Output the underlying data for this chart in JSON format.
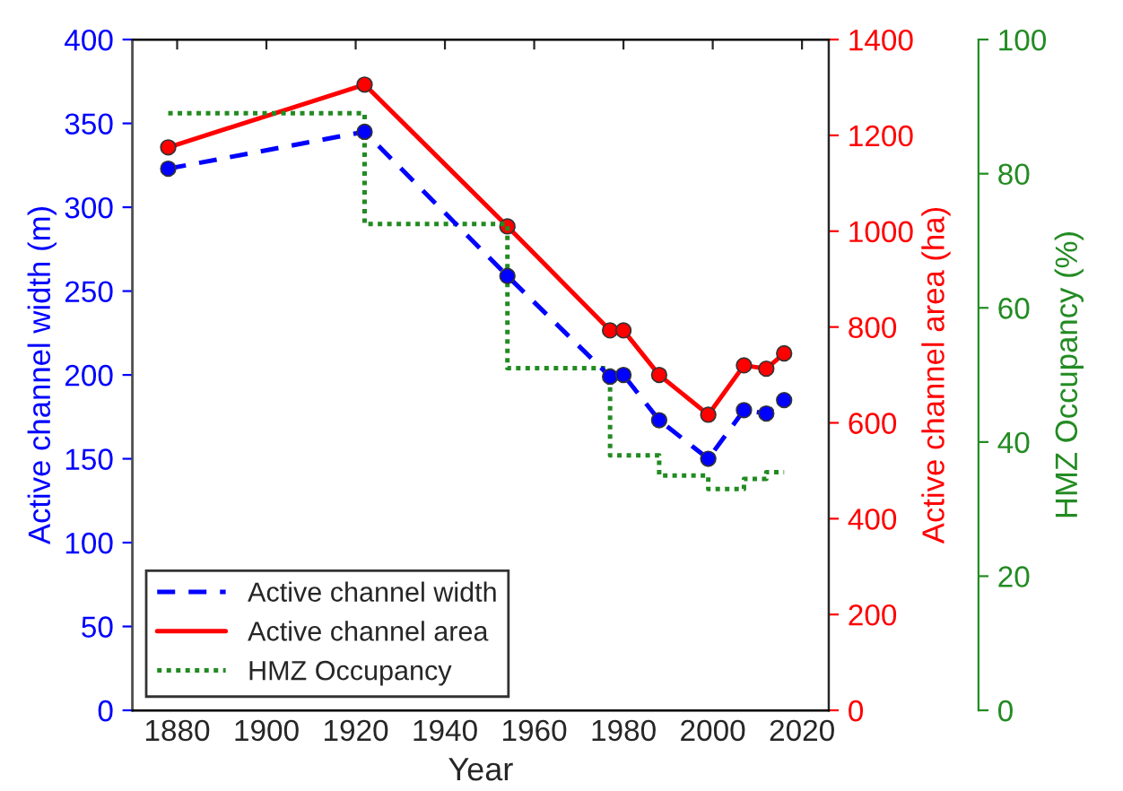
{
  "chart_data": {
    "type": "line",
    "xlabel": "Year",
    "ylabel": "Active channel width (m)",
    "y2label": "Active channel area (ha)",
    "y3label": "HMZ Occupancy (%)",
    "xlim": [
      1870,
      2026
    ],
    "xticks": [
      1880,
      1900,
      1920,
      1940,
      1960,
      1980,
      2000,
      2020
    ],
    "ylim": [
      0,
      400
    ],
    "yticks": [
      0,
      50,
      100,
      150,
      200,
      250,
      300,
      350,
      400
    ],
    "y2lim": [
      0,
      1400
    ],
    "y2ticks": [
      0,
      200,
      400,
      600,
      800,
      1000,
      1200,
      1400
    ],
    "y3lim": [
      0,
      100
    ],
    "y3ticks": [
      0,
      20,
      40,
      60,
      80,
      100
    ],
    "grid": false,
    "legend": "bottom left",
    "series": [
      {
        "name": "Active channel width",
        "color": "#0000ff",
        "line_style": "dashed",
        "marker": "circle",
        "x": [
          1878,
          1922,
          1954,
          1977,
          1980,
          1988,
          1999,
          2007,
          2012,
          2016
        ],
        "values": [
          323,
          345,
          259,
          199,
          200,
          173,
          150,
          179,
          177,
          185
        ]
      },
      {
        "name": "Active channel area",
        "color": "#ff0000",
        "line_style": "solid",
        "marker": "circle",
        "axis": "y2",
        "x": [
          1878,
          1922,
          1954,
          1977,
          1980,
          1988,
          1999,
          2007,
          2012,
          2016
        ],
        "values": [
          1175,
          1306,
          1010,
          793,
          793,
          700,
          617,
          720,
          713,
          745
        ]
      },
      {
        "name": "HMZ Occupancy",
        "color": "#228b22",
        "type": "step",
        "line_style": "dotted",
        "marker": "none",
        "axis": "y3",
        "x": [
          1878,
          1922,
          1954,
          1977,
          1988,
          1999,
          2007,
          2012,
          2016
        ],
        "values": [
          89,
          72.5,
          51,
          38,
          35,
          33,
          34.5,
          35.5,
          35.5
        ]
      }
    ]
  }
}
